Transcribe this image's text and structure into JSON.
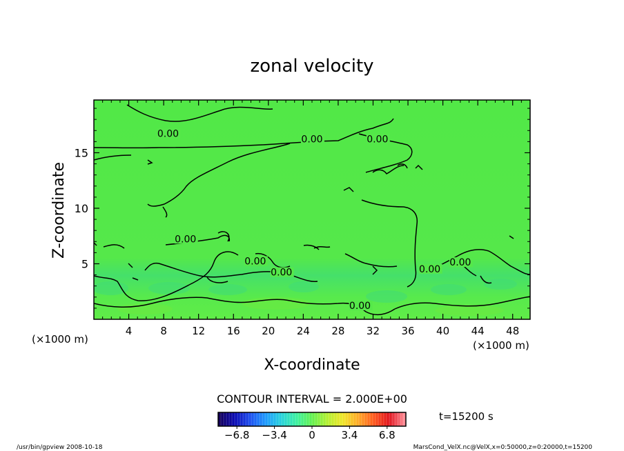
{
  "chart_data": {
    "type": "heatmap",
    "title": "zonal velocity",
    "xlabel": "X-coordinate",
    "ylabel": "Z-coordinate",
    "x_unit": "(×1000 m)",
    "x_unit_right": "(×1000 m)",
    "y_unit": "(×1000 m)",
    "xlim": [
      0,
      50
    ],
    "ylim": [
      0,
      19.75
    ],
    "x_ticks": [
      4,
      8,
      12,
      16,
      20,
      24,
      28,
      32,
      36,
      40,
      44,
      48
    ],
    "y_ticks": [
      5,
      10,
      15
    ],
    "contour_interval_text": "CONTOUR INTERVAL = 2.000E+00",
    "time_text": "t=15200 s",
    "contour_labels": [
      {
        "text": "0.00",
        "x": 8.5,
        "z": 16.5
      },
      {
        "text": "0.00",
        "x": 25.0,
        "z": 16.0
      },
      {
        "text": "0.00",
        "x": 32.5,
        "z": 16.0
      },
      {
        "text": "0.00",
        "x": 10.5,
        "z": 7.0
      },
      {
        "text": "0.00",
        "x": 18.5,
        "z": 5.0
      },
      {
        "text": "0.00",
        "x": 21.5,
        "z": 4.0
      },
      {
        "text": "0.00",
        "x": 30.5,
        "z": 1.0
      },
      {
        "text": "0.00",
        "x": 38.5,
        "z": 4.3
      },
      {
        "text": "0.00",
        "x": 42.0,
        "z": 4.9
      }
    ],
    "colorbar": {
      "min": -8.5,
      "max": 8.5,
      "tick_values": [
        -6.8,
        -3.4,
        0,
        3.4,
        6.8
      ],
      "tick_labels": [
        "−6.8",
        "−3.4",
        "0",
        "3.4",
        "6.8"
      ],
      "colors": [
        "#14005a",
        "#0a0ab4",
        "#1e50f0",
        "#1e9bff",
        "#28d2dc",
        "#3cf0a0",
        "#64f050",
        "#b4f032",
        "#f0e628",
        "#ffaa28",
        "#ff5a1e",
        "#e1141e",
        "#ff8c96"
      ]
    }
  },
  "footer": {
    "left": "/usr/bin/gpview  2008-10-18",
    "right": "MarsCond_VelX.nc@VelX,x=0:50000,z=0:20000,t=15200"
  }
}
